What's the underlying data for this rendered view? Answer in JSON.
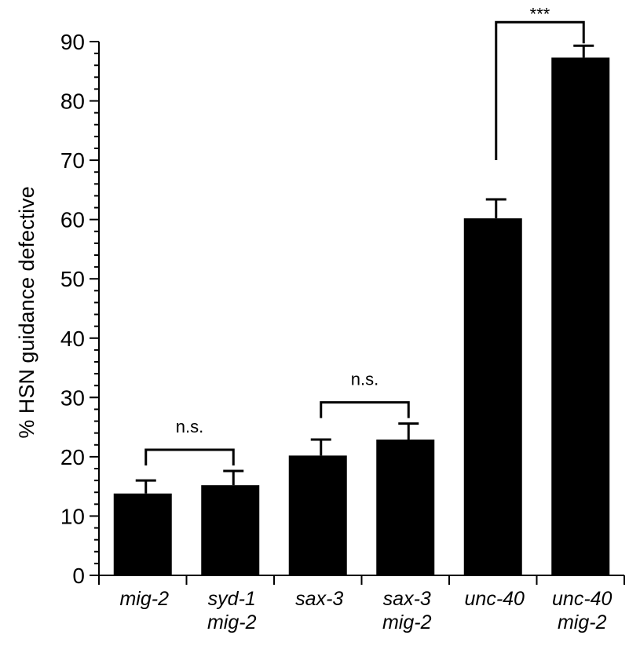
{
  "chart_data": {
    "type": "bar",
    "title": "",
    "xlabel": "",
    "ylabel": "% HSN guidance defective",
    "ylim": [
      0,
      90
    ],
    "yticks": [
      0,
      10,
      20,
      30,
      40,
      50,
      60,
      70,
      80,
      90
    ],
    "ytick_labels": [
      "0",
      "10",
      "20",
      "30",
      "40",
      "50",
      "60",
      "70",
      "80",
      "90"
    ],
    "categories": [
      [
        "mig-2"
      ],
      [
        "syd-1",
        "mig-2"
      ],
      [
        "sax-3"
      ],
      [
        "sax-3",
        "mig-2"
      ],
      [
        "unc-40"
      ],
      [
        "unc-40",
        "mig-2"
      ]
    ],
    "values": [
      13.8,
      15.2,
      20.2,
      22.9,
      60.2,
      87.3
    ],
    "errors": [
      2.2,
      2.4,
      2.7,
      2.7,
      3.2,
      2.0
    ],
    "bar_color": "#000000",
    "grid": false,
    "annotations": [
      {
        "from": 0,
        "to": 1,
        "label": "n.s."
      },
      {
        "from": 2,
        "to": 3,
        "label": "n.s."
      },
      {
        "from": 4,
        "to": 5,
        "label": "***"
      }
    ]
  }
}
